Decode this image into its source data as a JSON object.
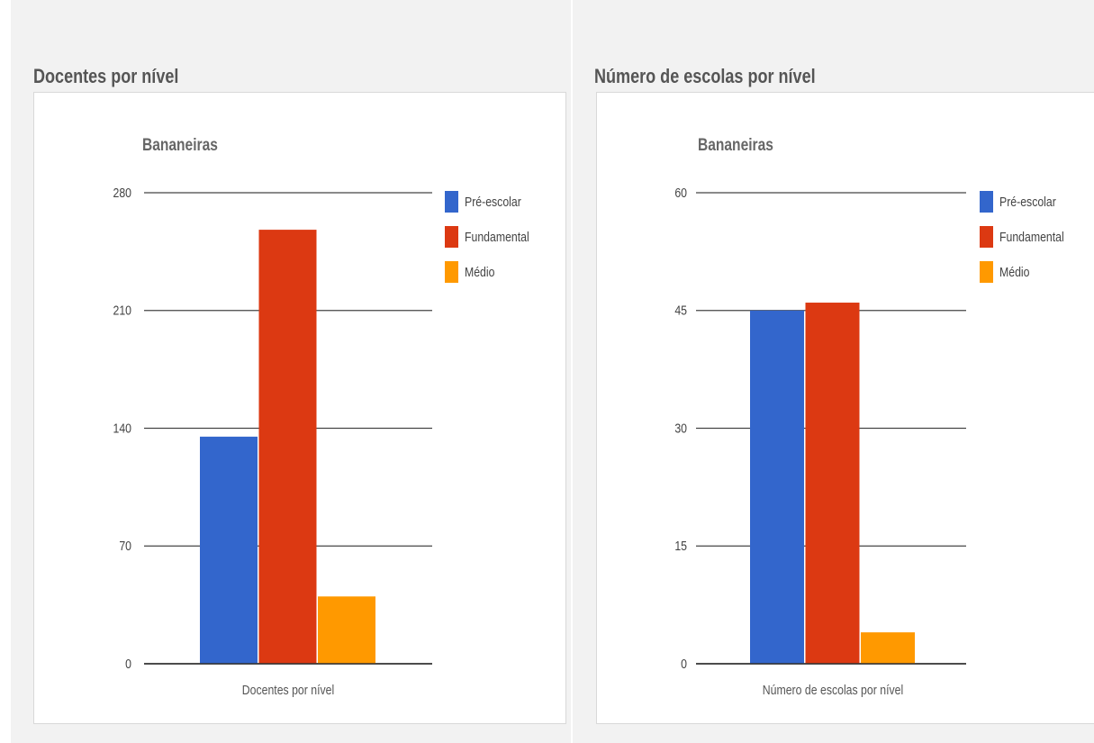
{
  "panels": [
    {
      "section_title": "Docentes por nível",
      "chart_data": {
        "type": "bar",
        "title": "Bananeiras",
        "categories": [
          "Docentes por nível"
        ],
        "series": [
          {
            "name": "Pré-escolar",
            "values": [
              135
            ],
            "color": "#3366cc"
          },
          {
            "name": "Fundamental",
            "values": [
              258
            ],
            "color": "#dc3912"
          },
          {
            "name": "Médio",
            "values": [
              40
            ],
            "color": "#ff9900"
          }
        ],
        "ylim": [
          0,
          280
        ],
        "yticks": [
          0,
          70,
          140,
          210,
          280
        ],
        "grid": true,
        "legend": "right",
        "xlabel": "",
        "ylabel": ""
      }
    },
    {
      "section_title": "Número de escolas por nível",
      "chart_data": {
        "type": "bar",
        "title": "Bananeiras",
        "categories": [
          "Número de escolas por nível"
        ],
        "series": [
          {
            "name": "Pré-escolar",
            "values": [
              45
            ],
            "color": "#3366cc"
          },
          {
            "name": "Fundamental",
            "values": [
              46
            ],
            "color": "#dc3912"
          },
          {
            "name": "Médio",
            "values": [
              4
            ],
            "color": "#ff9900"
          }
        ],
        "ylim": [
          0,
          60
        ],
        "yticks": [
          0,
          15,
          30,
          45,
          60
        ],
        "grid": true,
        "legend": "right",
        "xlabel": "",
        "ylabel": ""
      }
    }
  ]
}
